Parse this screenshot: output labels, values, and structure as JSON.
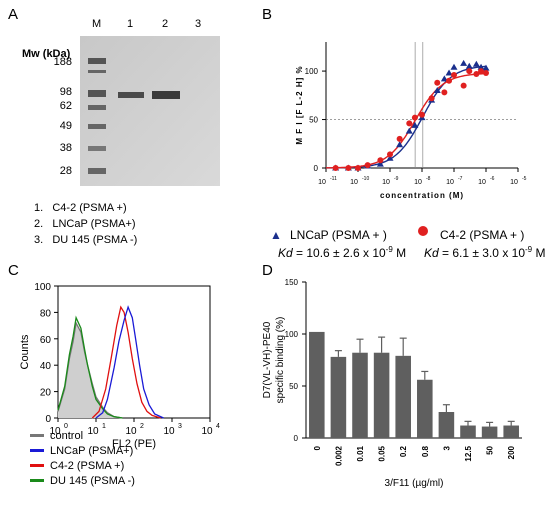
{
  "panelA": {
    "letter": "A",
    "mw_label": "Mw (kDa)",
    "lane_labels": [
      "M",
      "1",
      "2",
      "3"
    ],
    "marker_kda": [
      "188",
      "98",
      "62",
      "49",
      "38",
      "28"
    ],
    "legend": [
      "1.   C4-2 (PSMA +)",
      "2.   LNCaP (PSMA+)",
      "3.   DU 145 (PSMA -)"
    ]
  },
  "panelB": {
    "letter": "B",
    "legend_lncap": "LNCaP (PSMA + )",
    "legend_c42": "C4-2 (PSMA + )",
    "kd_lncap_value": " = 10.6 ± 2.6 x 10",
    "kd_c42_value": " = 6.1 ± 3.0 x 10",
    "kd_label": "Kd",
    "kd_exp": "-9",
    "kd_unit": " M"
  },
  "panelC": {
    "letter": "C",
    "legend": [
      {
        "label": "control",
        "color": "#777777"
      },
      {
        "label": "LNCaP (PSMA+)",
        "color": "#1a1ad6"
      },
      {
        "label": "C4-2 (PSMA +)",
        "color": "#e01010"
      },
      {
        "label": "DU 145 (PSMA -)",
        "color": "#1a8a1a"
      }
    ]
  },
  "panelD": {
    "letter": "D"
  },
  "chart_data": [
    {
      "type": "scatter",
      "panel": "B",
      "xlabel": "concentration (M)",
      "ylabel": "M F I [F L-2 H] %",
      "xscale": "log",
      "xlim": [
        1e-11,
        1e-05
      ],
      "ylim": [
        0,
        130
      ],
      "x_tick_labels": [
        "10-11",
        "10-10",
        "10-9",
        "10-8",
        "10-7",
        "10-6",
        "10-5"
      ],
      "y_tick_labels": [
        "0",
        "50",
        "100"
      ],
      "series": [
        {
          "name": "LNCaP (PSMA + )",
          "color": "#1a2f8c",
          "marker": "triangle",
          "x": [
            2e-11,
            5e-11,
            1e-10,
            2e-10,
            5e-10,
            1e-09,
            2e-09,
            4e-09,
            6e-09,
            1e-08,
            2e-08,
            3e-08,
            5e-08,
            7e-08,
            1e-07,
            2e-07,
            3e-07,
            5e-07,
            7e-07,
            1e-06
          ],
          "y": [
            0,
            0,
            0,
            2,
            4,
            10,
            24,
            38,
            44,
            52,
            70,
            80,
            92,
            98,
            104,
            108,
            105,
            107,
            104,
            103
          ]
        },
        {
          "name": "C4-2 (PSMA + )",
          "color": "#e02020",
          "marker": "circle",
          "x": [
            2e-11,
            5e-11,
            1e-10,
            2e-10,
            5e-10,
            1e-09,
            2e-09,
            4e-09,
            6e-09,
            1e-08,
            2e-08,
            3e-08,
            5e-08,
            7e-08,
            1e-07,
            2e-07,
            3e-07,
            5e-07,
            7e-07,
            1e-06
          ],
          "y": [
            0,
            0,
            0,
            3,
            8,
            14,
            30,
            46,
            52,
            55,
            72,
            88,
            78,
            90,
            96,
            85,
            100,
            97,
            100,
            98
          ]
        }
      ],
      "ref_line_y": 50,
      "ref_lines_x": [
        6.1e-09,
        1.06e-08
      ]
    },
    {
      "type": "area",
      "panel": "C",
      "xlabel": "FL2 (PE)",
      "ylabel": "Counts",
      "xscale": "log",
      "xlim": [
        1,
        10000
      ],
      "ylim": [
        0,
        100
      ],
      "x_tick_labels": [
        "10",
        "10",
        "10",
        "10",
        "10"
      ],
      "x_tick_exps": [
        "0",
        "1",
        "2",
        "3",
        "4"
      ],
      "y_tick_labels": [
        "0",
        "20",
        "40",
        "60",
        "80",
        "100"
      ],
      "series": [
        {
          "name": "control",
          "color": "#777777",
          "x": [
            1,
            1.5,
            2,
            2.5,
            3,
            4,
            5,
            6,
            8,
            10,
            15,
            20,
            30,
            50
          ],
          "y": [
            5,
            22,
            45,
            58,
            72,
            65,
            50,
            40,
            26,
            16,
            8,
            4,
            1,
            0
          ]
        },
        {
          "name": "DU 145 (PSMA -)",
          "color": "#1a8a1a",
          "x": [
            1,
            1.5,
            2,
            2.5,
            3,
            4,
            5,
            6,
            8,
            10,
            15,
            20,
            30,
            50
          ],
          "y": [
            6,
            24,
            48,
            62,
            76,
            68,
            52,
            40,
            24,
            14,
            7,
            3,
            1,
            0
          ]
        },
        {
          "name": "C4-2 (PSMA +)",
          "color": "#e01010",
          "x": [
            8,
            12,
            18,
            25,
            35,
            45,
            55,
            70,
            90,
            120,
            160,
            220,
            300,
            500
          ],
          "y": [
            0,
            5,
            22,
            45,
            70,
            84,
            80,
            65,
            45,
            26,
            12,
            5,
            2,
            0
          ]
        },
        {
          "name": "LNCaP (PSMA+)",
          "color": "#1a1ad6",
          "x": [
            10,
            15,
            20,
            30,
            40,
            55,
            70,
            90,
            110,
            140,
            180,
            250,
            350,
            600
          ],
          "y": [
            0,
            4,
            14,
            38,
            58,
            74,
            84,
            76,
            60,
            40,
            22,
            10,
            3,
            0
          ]
        }
      ]
    },
    {
      "type": "bar",
      "panel": "D",
      "xlabel": "3/F11 (µg/ml)",
      "ylabel": "D7(VL-VH)-PE40\nspecific binding (%)",
      "categories": [
        "0",
        "0.002",
        "0.01",
        "0.05",
        "0.2",
        "0.8",
        "3",
        "12.5",
        "50",
        "200"
      ],
      "values": [
        102,
        78,
        82,
        82,
        79,
        56,
        25,
        12,
        11,
        12
      ],
      "errors": [
        0,
        6,
        13,
        15,
        17,
        8,
        7,
        4,
        4,
        4
      ],
      "ylim": [
        0,
        150
      ],
      "y_tick_labels": [
        "0",
        "50",
        "100",
        "150"
      ],
      "bar_color": "#5f5f5f"
    }
  ]
}
